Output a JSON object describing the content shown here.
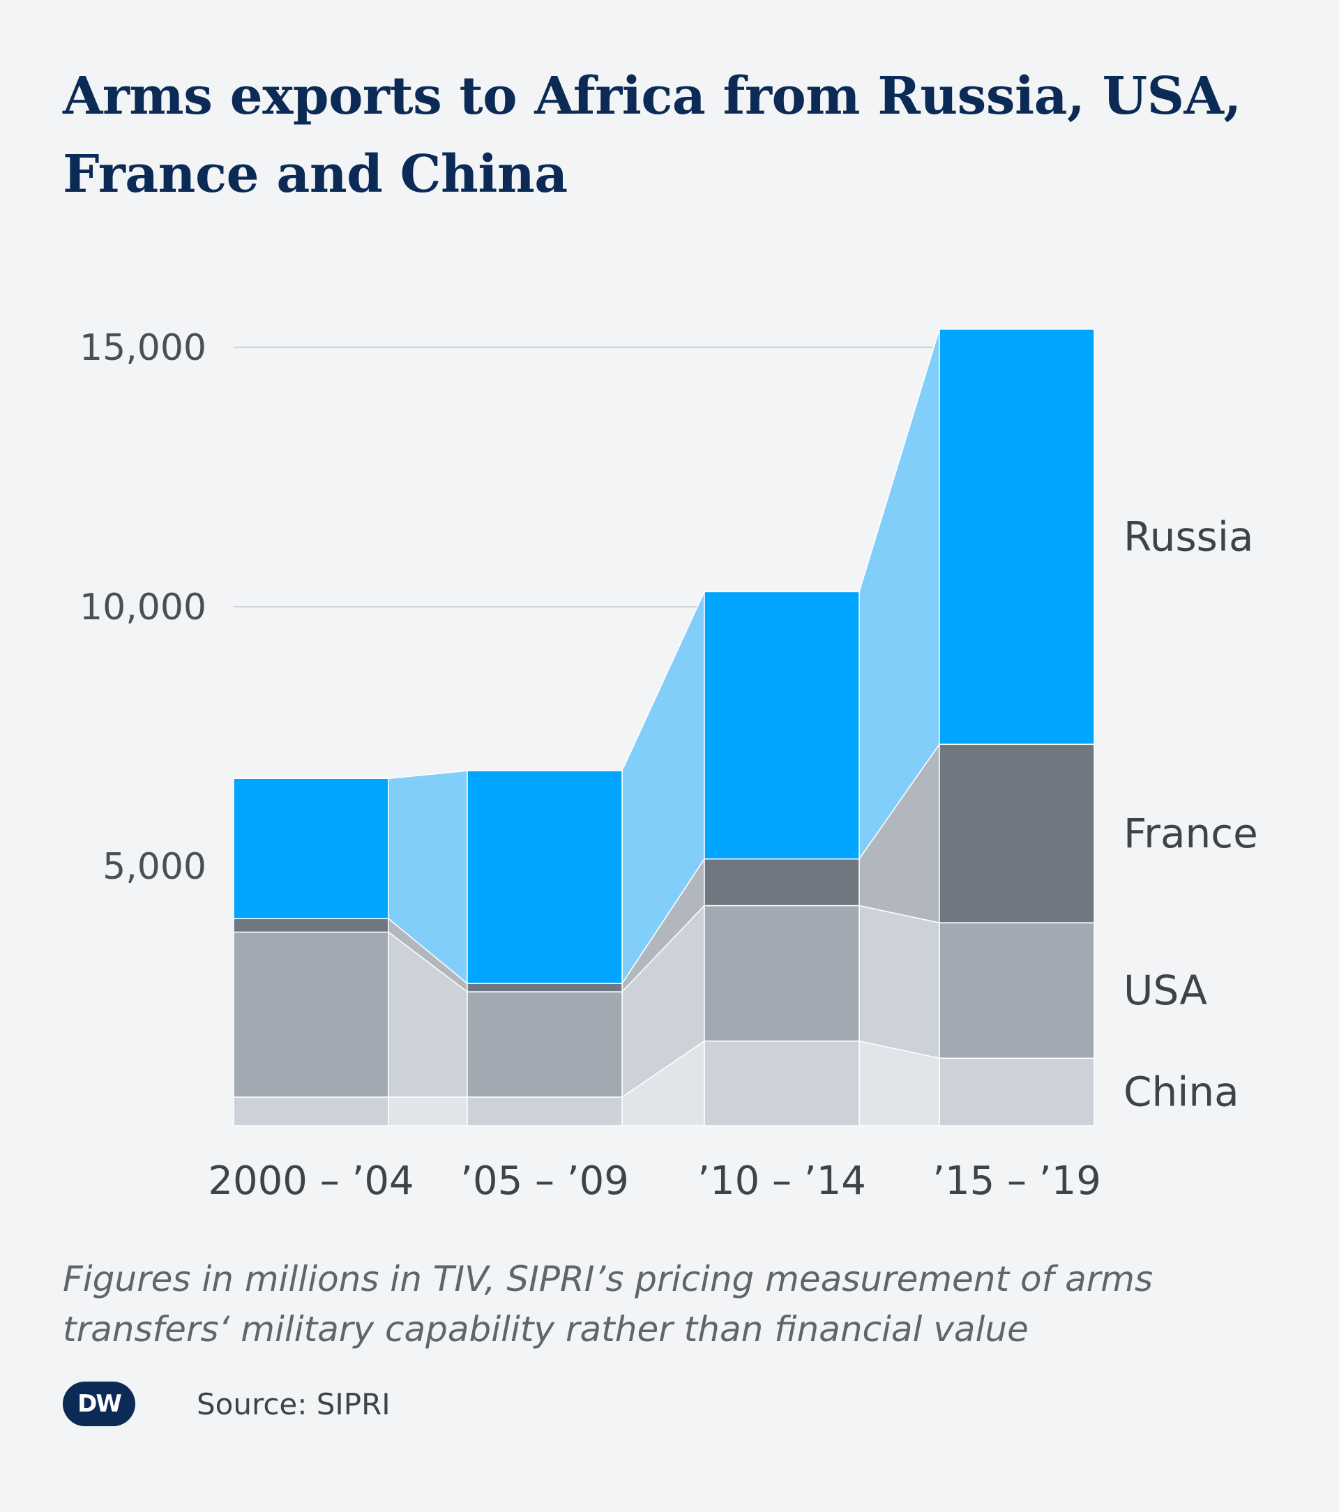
{
  "title": "Arms exports to Africa from Russia, USA, France and China",
  "footnote": "Figures in millions in TIV, SIPRI’s pricing measurement of arms transfers‘ military capability rather than financial value",
  "source": "Source: SIPRI",
  "logo_text": "DW",
  "chart_data": {
    "type": "bar",
    "stacked": true,
    "title": "Arms exports to Africa from Russia, USA, France and China",
    "xlabel": "",
    "ylabel": "",
    "categories": [
      "2000 – ’04",
      "’05 – ’09",
      "’10 – ’14",
      "’15 – ’19"
    ],
    "y_ticks": [
      5000,
      10000,
      15000
    ],
    "y_tick_labels": [
      "5,000",
      "10,000",
      "15,000"
    ],
    "ylim": [
      0,
      15300
    ],
    "grid": true,
    "legend": "right, series labels next to last bar",
    "series": [
      {
        "name": "China",
        "values": [
          550,
          550,
          1630,
          1300
        ],
        "color": "#cdd2d8",
        "connector_color": "#e1e4e8"
      },
      {
        "name": "USA",
        "values": [
          3180,
          2030,
          2610,
          2610
        ],
        "color": "#a1aab3",
        "connector_color": "#cdd2d8"
      },
      {
        "name": "France",
        "values": [
          260,
          160,
          900,
          3440
        ],
        "color": "#6f7881",
        "connector_color": "#b1b7bd"
      },
      {
        "name": "Russia",
        "values": [
          2700,
          4100,
          5150,
          8000
        ],
        "color": "#00a5ff",
        "connector_color": "#82cefa"
      }
    ]
  }
}
